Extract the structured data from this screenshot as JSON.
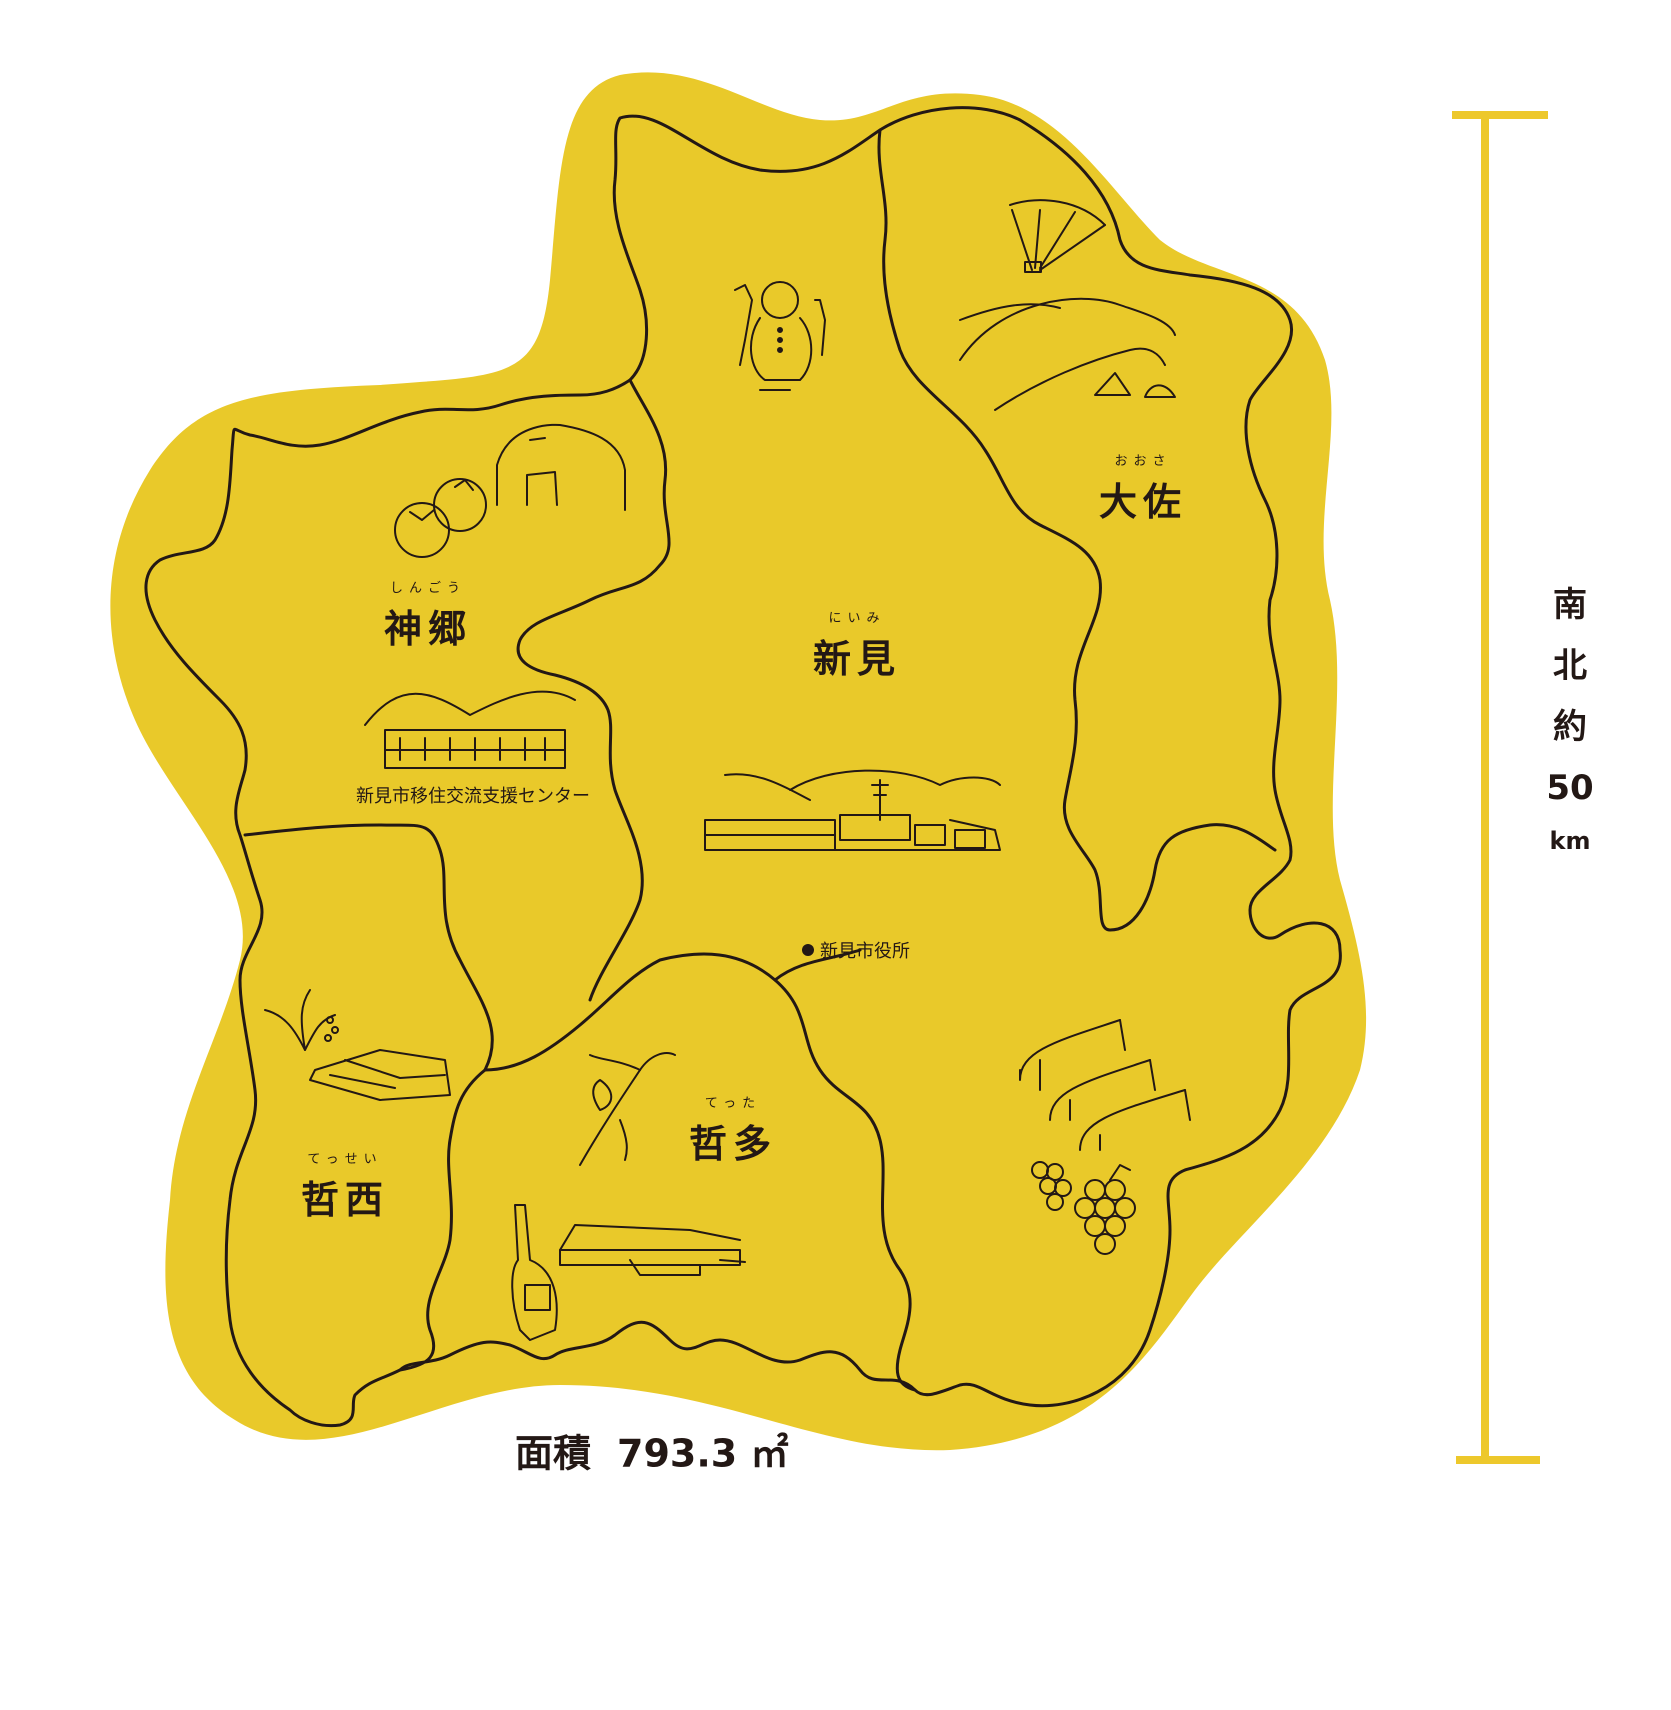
{
  "colors": {
    "map_fill": "#E9C92A",
    "outline": "#231815",
    "scale_bar": "#EDC82B",
    "background": "#FFFFFF"
  },
  "regions": {
    "shingo": {
      "ruby": "しんごう",
      "name": "神郷"
    },
    "niimi": {
      "ruby": "にいみ",
      "name": "新見"
    },
    "osa": {
      "ruby": "おおさ",
      "name": "大佐"
    },
    "tetta": {
      "ruby": "てった",
      "name": "哲多"
    },
    "tessei": {
      "ruby": "てっせい",
      "name": "哲西"
    }
  },
  "facilities": {
    "city_hall": "新見市役所",
    "migration_center": "新見市移住交流支援センター"
  },
  "area": {
    "label": "面積",
    "value": "793.3 ㎡"
  },
  "scale": {
    "chars": [
      "南",
      "北",
      "約",
      "50"
    ],
    "unit": "km"
  },
  "illustrations": [
    "paraglider-icon",
    "mountain-tents-icon",
    "snowman-icon",
    "tomato-icon",
    "greenhouse-icon",
    "building-icon",
    "factory-town-icon",
    "rice-field-icon",
    "lily-icon",
    "wine-bottle-icon",
    "winery-icon",
    "vinyl-house-icon",
    "grape-icon"
  ]
}
